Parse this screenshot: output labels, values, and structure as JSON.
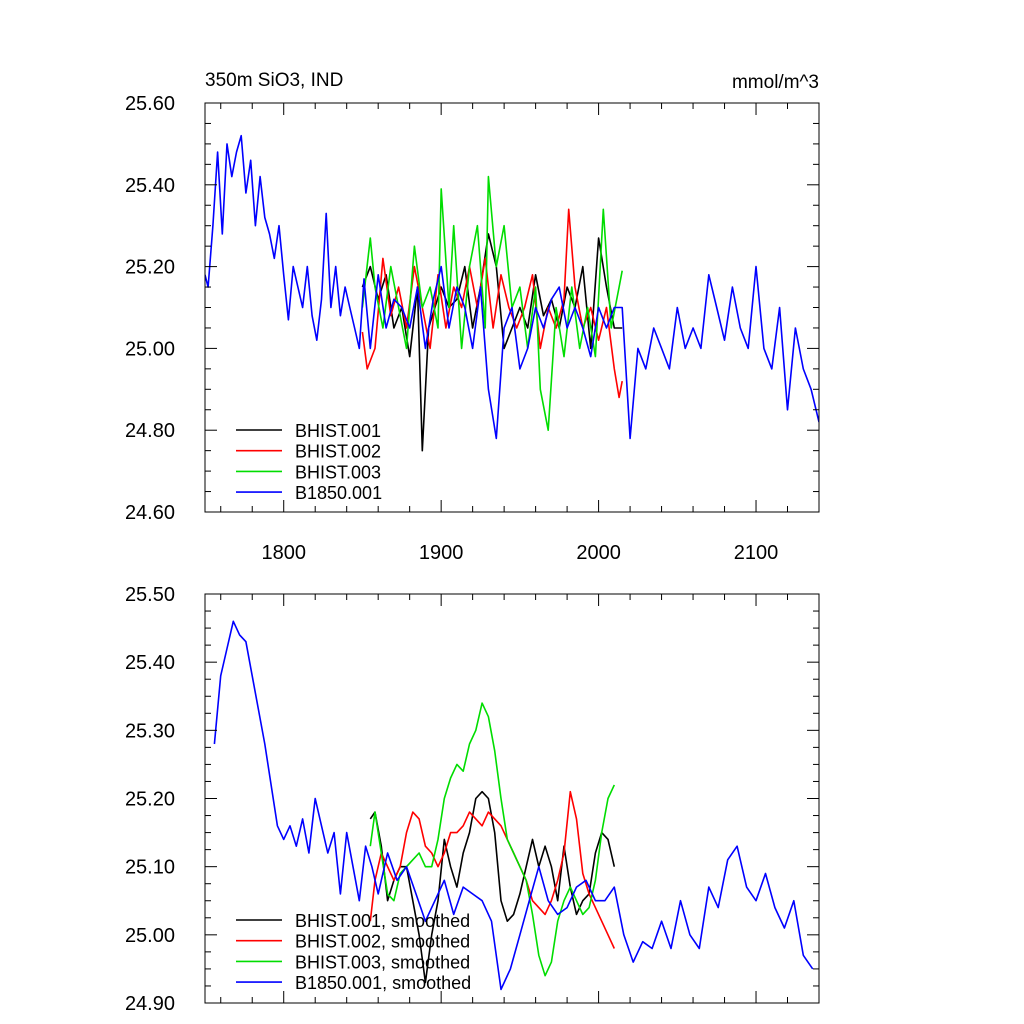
{
  "chart_data": [
    {
      "type": "line",
      "title_left": "350m SiO3, IND",
      "title_right": "mmol/m^3",
      "xlim": [
        1750,
        2140
      ],
      "ylim": [
        24.6,
        25.6
      ],
      "x_ticks": [
        1800,
        1900,
        2000,
        2100
      ],
      "x_tick_labels": [
        "1800",
        "1900",
        "2000",
        "2100"
      ],
      "y_ticks": [
        24.6,
        24.8,
        25.0,
        25.2,
        25.4,
        25.6
      ],
      "y_tick_labels": [
        "24.60",
        "24.80",
        "25.00",
        "25.20",
        "25.40",
        "25.60"
      ],
      "legend_position": "bottom-left",
      "series": [
        {
          "name": "BHIST.001",
          "color": "#000000",
          "x": [
            1850,
            1855,
            1860,
            1865,
            1870,
            1875,
            1880,
            1885,
            1888,
            1892,
            1896,
            1900,
            1905,
            1910,
            1915,
            1920,
            1925,
            1930,
            1935,
            1940,
            1945,
            1950,
            1955,
            1960,
            1965,
            1970,
            1975,
            1980,
            1985,
            1990,
            1995,
            2000,
            2005,
            2010,
            2015
          ],
          "y": [
            25.15,
            25.2,
            25.12,
            25.18,
            25.05,
            25.1,
            24.98,
            25.15,
            24.75,
            25.05,
            25.1,
            25.15,
            25.1,
            25.12,
            25.2,
            25.05,
            25.15,
            25.28,
            25.2,
            25.0,
            25.05,
            25.1,
            25.05,
            25.18,
            25.08,
            25.12,
            25.05,
            25.15,
            25.1,
            25.2,
            25.0,
            25.27,
            25.15,
            25.05,
            25.05
          ]
        },
        {
          "name": "BHIST.002",
          "color": "#ff0000",
          "x": [
            1850,
            1853,
            1858,
            1863,
            1868,
            1873,
            1878,
            1883,
            1888,
            1893,
            1898,
            1903,
            1908,
            1913,
            1918,
            1923,
            1928,
            1933,
            1938,
            1943,
            1948,
            1953,
            1958,
            1963,
            1968,
            1973,
            1978,
            1981,
            1985,
            1990,
            1995,
            2000,
            2005,
            2010,
            2013,
            2015
          ],
          "y": [
            25.04,
            24.95,
            25.0,
            25.22,
            25.08,
            25.15,
            25.05,
            25.2,
            25.1,
            25.0,
            25.18,
            25.05,
            25.15,
            25.1,
            25.2,
            25.1,
            25.22,
            25.05,
            25.18,
            25.1,
            25.05,
            25.1,
            25.18,
            25.0,
            25.1,
            25.05,
            25.12,
            25.34,
            25.15,
            25.05,
            25.1,
            25.02,
            25.1,
            24.95,
            24.88,
            24.92
          ]
        },
        {
          "name": "BHIST.003",
          "color": "#00dd00",
          "x": [
            1850,
            1855,
            1858,
            1863,
            1868,
            1873,
            1878,
            1883,
            1888,
            1893,
            1898,
            1900,
            1905,
            1908,
            1913,
            1918,
            1923,
            1928,
            1930,
            1935,
            1940,
            1945,
            1950,
            1955,
            1960,
            1963,
            1968,
            1973,
            1978,
            1983,
            1988,
            1993,
            1998,
            2003,
            2008,
            2013,
            2015
          ],
          "y": [
            25.1,
            25.27,
            25.15,
            25.05,
            25.2,
            25.1,
            25.0,
            25.25,
            25.1,
            25.15,
            25.05,
            25.39,
            25.1,
            25.3,
            25.0,
            25.2,
            25.3,
            25.05,
            25.42,
            25.2,
            25.3,
            25.1,
            25.15,
            25.0,
            25.15,
            24.9,
            24.8,
            25.1,
            24.98,
            25.15,
            25.0,
            25.1,
            24.98,
            25.34,
            25.05,
            25.15,
            25.19
          ]
        },
        {
          "name": "B1850.001",
          "color": "#0000ff",
          "x": [
            1750,
            1752,
            1755,
            1758,
            1761,
            1764,
            1767,
            1770,
            1773,
            1776,
            1779,
            1782,
            1785,
            1788,
            1791,
            1794,
            1797,
            1800,
            1803,
            1806,
            1809,
            1812,
            1815,
            1818,
            1821,
            1824,
            1827,
            1830,
            1833,
            1836,
            1839,
            1842,
            1845,
            1848,
            1851,
            1855,
            1860,
            1865,
            1870,
            1875,
            1880,
            1885,
            1890,
            1895,
            1900,
            1905,
            1910,
            1915,
            1920,
            1925,
            1930,
            1935,
            1940,
            1945,
            1950,
            1955,
            1960,
            1965,
            1970,
            1975,
            1980,
            1985,
            1990,
            1995,
            2000,
            2005,
            2010,
            2015,
            2020,
            2025,
            2030,
            2035,
            2040,
            2045,
            2050,
            2055,
            2060,
            2065,
            2070,
            2075,
            2080,
            2085,
            2090,
            2095,
            2100,
            2105,
            2110,
            2115,
            2120,
            2125,
            2130,
            2135,
            2140
          ],
          "y": [
            25.18,
            25.15,
            25.3,
            25.48,
            25.28,
            25.5,
            25.42,
            25.48,
            25.52,
            25.38,
            25.46,
            25.3,
            25.42,
            25.32,
            25.28,
            25.22,
            25.3,
            25.18,
            25.07,
            25.2,
            25.15,
            25.1,
            25.2,
            25.08,
            25.02,
            25.12,
            25.33,
            25.1,
            25.2,
            25.08,
            25.15,
            25.1,
            25.05,
            25.0,
            25.17,
            25.0,
            25.18,
            25.05,
            25.12,
            25.1,
            25.05,
            25.15,
            25.0,
            25.12,
            25.2,
            25.05,
            25.15,
            25.1,
            25.0,
            25.15,
            24.9,
            24.78,
            25.05,
            25.1,
            24.95,
            25.0,
            25.1,
            25.05,
            25.12,
            25.15,
            25.05,
            25.1,
            25.05,
            24.98,
            25.1,
            25.05,
            25.1,
            25.1,
            24.78,
            25.0,
            24.95,
            25.05,
            25.0,
            24.95,
            25.1,
            25.0,
            25.05,
            25.0,
            25.18,
            25.1,
            25.02,
            25.15,
            25.05,
            25.0,
            25.2,
            25.0,
            24.95,
            25.1,
            24.85,
            25.05,
            24.95,
            24.9,
            24.82
          ]
        }
      ]
    },
    {
      "type": "line",
      "xlim": [
        1750,
        2140
      ],
      "ylim": [
        24.9,
        25.5
      ],
      "x_ticks": [
        1800,
        1900,
        2000,
        2100
      ],
      "y_ticks": [
        24.9,
        25.0,
        25.1,
        25.2,
        25.3,
        25.4,
        25.5
      ],
      "y_tick_labels": [
        "24.90",
        "25.00",
        "25.10",
        "25.20",
        "25.30",
        "25.40",
        "25.50"
      ],
      "legend_position": "bottom-left",
      "series": [
        {
          "name": "BHIST.001, smoothed",
          "color": "#000000",
          "x": [
            1855,
            1858,
            1862,
            1866,
            1870,
            1874,
            1878,
            1882,
            1886,
            1890,
            1894,
            1898,
            1902,
            1906,
            1910,
            1914,
            1918,
            1922,
            1926,
            1930,
            1934,
            1938,
            1942,
            1946,
            1950,
            1954,
            1958,
            1962,
            1966,
            1970,
            1974,
            1978,
            1982,
            1986,
            1990,
            1994,
            1998,
            2002,
            2006,
            2010
          ],
          "y": [
            25.17,
            25.18,
            25.13,
            25.05,
            25.08,
            25.1,
            25.1,
            25.05,
            25.0,
            24.93,
            25.0,
            25.05,
            25.14,
            25.1,
            25.07,
            25.12,
            25.15,
            25.2,
            25.21,
            25.2,
            25.15,
            25.05,
            25.02,
            25.03,
            25.06,
            25.1,
            25.14,
            25.1,
            25.13,
            25.1,
            25.05,
            25.13,
            25.07,
            25.03,
            25.05,
            25.06,
            25.12,
            25.15,
            25.14,
            25.1
          ]
        },
        {
          "name": "BHIST.002, smoothed",
          "color": "#ff0000",
          "x": [
            1855,
            1858,
            1862,
            1866,
            1870,
            1874,
            1878,
            1882,
            1886,
            1890,
            1894,
            1898,
            1902,
            1906,
            1910,
            1914,
            1918,
            1922,
            1926,
            1930,
            1934,
            1938,
            1942,
            1946,
            1950,
            1954,
            1958,
            1962,
            1966,
            1970,
            1974,
            1978,
            1982,
            1986,
            1990,
            1994,
            1998,
            2002,
            2006,
            2010
          ],
          "y": [
            25.02,
            25.08,
            25.12,
            25.1,
            25.08,
            25.1,
            25.15,
            25.18,
            25.17,
            25.13,
            25.12,
            25.1,
            25.12,
            25.15,
            25.15,
            25.16,
            25.18,
            25.17,
            25.16,
            25.18,
            25.17,
            25.16,
            25.14,
            25.12,
            25.1,
            25.08,
            25.05,
            25.04,
            25.03,
            25.05,
            25.08,
            25.12,
            25.21,
            25.17,
            25.09,
            25.06,
            25.04,
            25.02,
            25.0,
            24.98
          ]
        },
        {
          "name": "BHIST.003, smoothed",
          "color": "#00dd00",
          "x": [
            1855,
            1858,
            1862,
            1866,
            1870,
            1874,
            1878,
            1882,
            1886,
            1890,
            1894,
            1898,
            1902,
            1906,
            1910,
            1914,
            1918,
            1922,
            1926,
            1930,
            1934,
            1938,
            1942,
            1946,
            1950,
            1954,
            1958,
            1962,
            1966,
            1970,
            1974,
            1978,
            1982,
            1986,
            1990,
            1994,
            1998,
            2002,
            2006,
            2010
          ],
          "y": [
            25.13,
            25.18,
            25.12,
            25.06,
            25.05,
            25.09,
            25.1,
            25.11,
            25.12,
            25.1,
            25.1,
            25.14,
            25.2,
            25.23,
            25.25,
            25.24,
            25.28,
            25.3,
            25.34,
            25.32,
            25.27,
            25.2,
            25.14,
            25.12,
            25.1,
            25.08,
            25.03,
            24.97,
            24.94,
            24.96,
            25.02,
            25.05,
            25.07,
            25.05,
            25.03,
            25.04,
            25.08,
            25.15,
            25.2,
            25.22
          ]
        },
        {
          "name": "B1850.001, smoothed",
          "color": "#0000ff",
          "x": [
            1756,
            1760,
            1764,
            1768,
            1772,
            1776,
            1780,
            1784,
            1788,
            1792,
            1796,
            1800,
            1804,
            1808,
            1812,
            1816,
            1820,
            1824,
            1828,
            1832,
            1836,
            1840,
            1844,
            1848,
            1852,
            1856,
            1860,
            1866,
            1872,
            1878,
            1884,
            1890,
            1896,
            1902,
            1908,
            1914,
            1920,
            1926,
            1932,
            1938,
            1944,
            1950,
            1956,
            1962,
            1968,
            1974,
            1980,
            1986,
            1992,
            1998,
            2004,
            2010,
            2016,
            2022,
            2028,
            2034,
            2040,
            2046,
            2052,
            2058,
            2064,
            2070,
            2076,
            2082,
            2088,
            2094,
            2100,
            2106,
            2112,
            2118,
            2124,
            2130,
            2136
          ],
          "y": [
            25.28,
            25.38,
            25.42,
            25.46,
            25.44,
            25.43,
            25.38,
            25.33,
            25.28,
            25.22,
            25.16,
            25.14,
            25.16,
            25.13,
            25.17,
            25.12,
            25.2,
            25.16,
            25.12,
            25.15,
            25.06,
            25.15,
            25.1,
            25.05,
            25.13,
            25.1,
            25.06,
            25.12,
            25.08,
            25.1,
            25.06,
            25.02,
            25.05,
            25.08,
            25.03,
            25.07,
            25.06,
            25.05,
            25.02,
            24.92,
            24.95,
            25.0,
            25.05,
            25.1,
            25.05,
            25.03,
            25.04,
            25.07,
            25.08,
            25.05,
            25.05,
            25.07,
            25.0,
            24.96,
            24.99,
            24.98,
            25.02,
            24.98,
            25.05,
            25.0,
            24.98,
            25.07,
            25.04,
            25.11,
            25.13,
            25.07,
            25.05,
            25.09,
            25.04,
            25.01,
            25.05,
            24.97,
            24.95
          ]
        }
      ]
    }
  ]
}
